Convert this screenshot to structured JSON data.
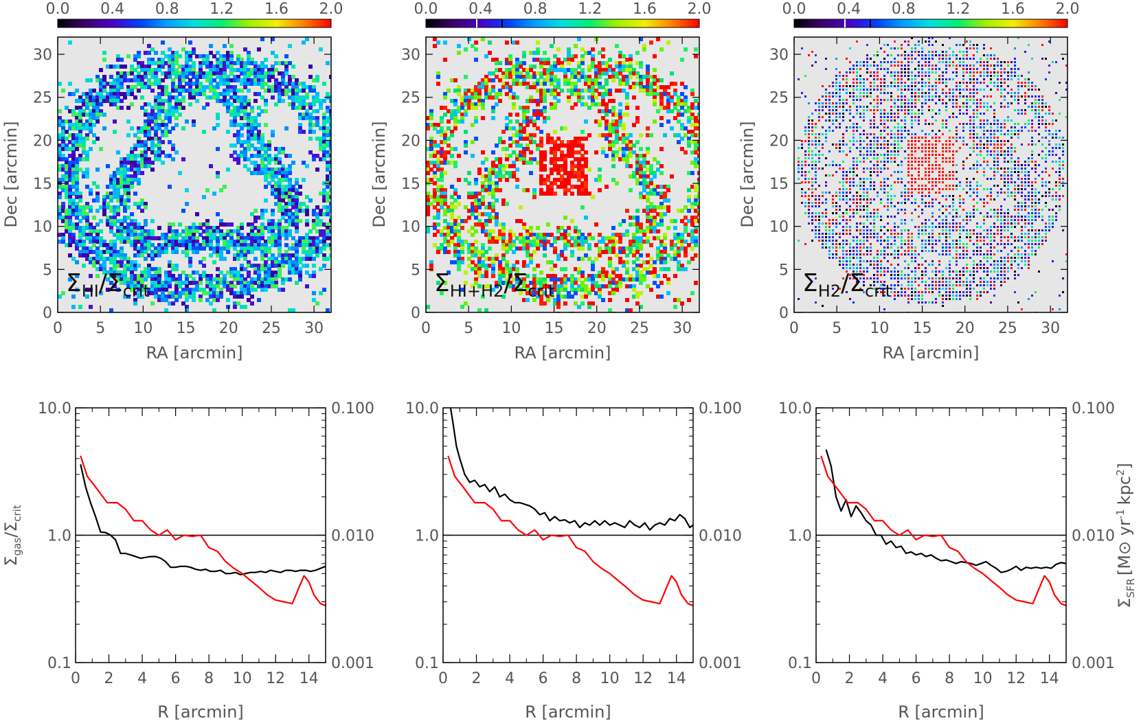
{
  "colorbar": {
    "ticks": [
      "0.0",
      "0.4",
      "0.8",
      "1.2",
      "1.6",
      "2.0"
    ],
    "stops": [
      "#000000",
      "#3a006e",
      "#4b00c8",
      "#0040ff",
      "#00a0ff",
      "#00e0e0",
      "#00f070",
      "#a0f000",
      "#f0f000",
      "#ff8000",
      "#ff0000"
    ]
  },
  "maps": {
    "xlabel": "RA [arcmin]",
    "ylabel": "Dec [arcmin]",
    "xticks": [
      "0",
      "5",
      "10",
      "15",
      "20",
      "25",
      "30"
    ],
    "yticks": [
      "0",
      "5",
      "10",
      "15",
      "20",
      "25",
      "30"
    ],
    "background": "#e6e6e6",
    "panels": [
      {
        "label_main": "Σ",
        "label_sub1": "HI",
        "label_slash": "/Σ",
        "label_sub2": "crit"
      },
      {
        "label_main": "Σ",
        "label_sub1": "HI+H2",
        "label_slash": "/Σ",
        "label_sub2": "crit"
      },
      {
        "label_main": "Σ",
        "label_sub1": "H2",
        "label_slash": "/Σ",
        "label_sub2": "crit"
      }
    ]
  },
  "profiles": {
    "xlabel": "R [arcmin]",
    "xticks": [
      "0",
      "2",
      "4",
      "6",
      "8",
      "10",
      "12",
      "14"
    ],
    "left_ticks": [
      "10.0",
      "1.0",
      "0.1"
    ],
    "right_ticks": [
      "0.100",
      "0.010",
      "0.001"
    ],
    "left_ylabel_main": "Σ",
    "left_ylabel_sub1": "gas",
    "left_ylabel_mid": "/Σ",
    "left_ylabel_sub2": "crit",
    "right_ylabel": "Σ_SFR [M⊙ yr⁻¹ kpc²]",
    "right_ylabel_main": "Σ",
    "right_ylabel_sub": "SFR",
    "right_ylabel_units": "[M⊙ yr",
    "right_ylabel_exp": "-1",
    "right_ylabel_units2": "kpc",
    "right_ylabel_exp2": "2",
    "right_ylabel_close": "]"
  },
  "chart_data": [
    {
      "type": "line",
      "xlabel": "R [arcmin]",
      "ylabel": "Σgas/Σcrit",
      "xlim": [
        0,
        15
      ],
      "ylim": [
        0.1,
        10.0
      ],
      "log_y": true,
      "reference_line_y": 1.0,
      "series": [
        {
          "color": "#000000",
          "x": [
            0.3,
            0.6,
            0.9,
            1.2,
            1.5,
            1.8,
            2.1,
            2.4,
            2.7,
            3.0,
            3.3,
            3.6,
            3.9,
            4.2,
            4.5,
            4.8,
            5.1,
            5.4,
            5.7,
            6.0,
            6.3,
            6.6,
            6.9,
            7.2,
            7.5,
            7.8,
            8.1,
            8.4,
            8.7,
            9.0,
            9.3,
            9.6,
            9.9,
            10.2,
            10.5,
            10.8,
            11.1,
            11.4,
            11.7,
            12.0,
            12.3,
            12.6,
            12.9,
            13.2,
            13.5,
            13.8,
            14.1,
            14.4,
            14.7,
            15.0
          ],
          "y": [
            3.6,
            2.4,
            1.8,
            1.4,
            1.06,
            1.05,
            1.0,
            0.92,
            0.72,
            0.72,
            0.7,
            0.68,
            0.66,
            0.67,
            0.68,
            0.68,
            0.66,
            0.62,
            0.56,
            0.56,
            0.57,
            0.57,
            0.56,
            0.54,
            0.53,
            0.54,
            0.52,
            0.52,
            0.53,
            0.5,
            0.5,
            0.51,
            0.49,
            0.5,
            0.51,
            0.51,
            0.52,
            0.51,
            0.53,
            0.52,
            0.51,
            0.53,
            0.53,
            0.52,
            0.53,
            0.53,
            0.52,
            0.53,
            0.55,
            0.57
          ]
        },
        {
          "color": "#ff0000",
          "x": [
            0.3,
            0.7,
            1.3,
            1.9,
            2.5,
            3.0,
            3.5,
            4.0,
            4.5,
            5.0,
            5.5,
            6.0,
            6.5,
            7.0,
            7.5,
            8.0,
            8.5,
            9.0,
            9.5,
            10.0,
            10.5,
            11.0,
            11.5,
            12.0,
            12.5,
            13.0,
            13.3,
            13.7,
            14.0,
            14.3,
            14.7,
            15.0
          ],
          "y": [
            4.2,
            2.9,
            2.3,
            1.8,
            1.8,
            1.6,
            1.3,
            1.3,
            1.1,
            1.0,
            1.1,
            0.92,
            1.0,
            0.98,
            1.0,
            0.8,
            0.75,
            0.62,
            0.55,
            0.5,
            0.44,
            0.39,
            0.34,
            0.31,
            0.3,
            0.29,
            0.36,
            0.48,
            0.43,
            0.34,
            0.29,
            0.28
          ]
        }
      ]
    },
    {
      "type": "line",
      "xlabel": "R [arcmin]",
      "xlim": [
        0,
        15
      ],
      "ylim": [
        0.1,
        10.0
      ],
      "log_y": true,
      "reference_line_y": 1.0,
      "series": [
        {
          "color": "#000000",
          "x": [
            0.4,
            0.6,
            0.8,
            1.0,
            1.3,
            1.6,
            1.9,
            2.2,
            2.5,
            2.8,
            3.1,
            3.4,
            3.7,
            4.0,
            4.3,
            4.6,
            4.9,
            5.2,
            5.5,
            5.8,
            6.1,
            6.4,
            6.7,
            7.0,
            7.3,
            7.6,
            7.9,
            8.2,
            8.5,
            8.8,
            9.1,
            9.4,
            9.7,
            10.0,
            10.3,
            10.6,
            10.9,
            11.2,
            11.5,
            11.8,
            12.1,
            12.4,
            12.7,
            13.0,
            13.3,
            13.6,
            13.9,
            14.2,
            14.5,
            14.8,
            15.0
          ],
          "y": [
            11.0,
            7.5,
            5.0,
            4.0,
            3.0,
            2.6,
            2.7,
            2.4,
            2.5,
            2.2,
            2.4,
            2.0,
            2.1,
            1.9,
            1.8,
            1.8,
            1.75,
            1.7,
            1.6,
            1.45,
            1.5,
            1.3,
            1.4,
            1.3,
            1.32,
            1.25,
            1.3,
            1.15,
            1.25,
            1.2,
            1.3,
            1.2,
            1.3,
            1.2,
            1.25,
            1.2,
            1.15,
            1.3,
            1.2,
            1.15,
            1.25,
            1.1,
            1.2,
            1.25,
            1.2,
            1.35,
            1.3,
            1.45,
            1.35,
            1.15,
            1.2
          ]
        },
        {
          "color": "#ff0000",
          "x": [
            0.3,
            0.7,
            1.3,
            1.9,
            2.5,
            3.0,
            3.5,
            4.0,
            4.5,
            5.0,
            5.5,
            6.0,
            6.5,
            7.0,
            7.5,
            8.0,
            8.5,
            9.0,
            9.5,
            10.0,
            10.5,
            11.0,
            11.5,
            12.0,
            12.5,
            13.0,
            13.3,
            13.7,
            14.0,
            14.3,
            14.7,
            15.0
          ],
          "y": [
            4.2,
            2.9,
            2.3,
            1.8,
            1.8,
            1.6,
            1.3,
            1.3,
            1.1,
            1.0,
            1.1,
            0.92,
            1.0,
            0.98,
            1.0,
            0.8,
            0.75,
            0.62,
            0.55,
            0.5,
            0.44,
            0.39,
            0.34,
            0.31,
            0.3,
            0.29,
            0.36,
            0.48,
            0.43,
            0.34,
            0.29,
            0.28
          ]
        }
      ]
    },
    {
      "type": "line",
      "xlabel": "R [arcmin]",
      "ylabel": "ΣSFR [M⊙ yr-1 kpc2]",
      "xlim": [
        0,
        15
      ],
      "ylim": [
        0.1,
        10.0
      ],
      "log_y": true,
      "reference_line_y": 1.0,
      "series": [
        {
          "color": "#000000",
          "x": [
            0.6,
            0.9,
            1.2,
            1.5,
            1.8,
            2.1,
            2.4,
            2.7,
            3.0,
            3.3,
            3.6,
            3.9,
            4.2,
            4.5,
            4.8,
            5.1,
            5.4,
            5.7,
            6.0,
            6.3,
            6.6,
            6.9,
            7.2,
            7.5,
            7.8,
            8.1,
            8.4,
            8.7,
            9.0,
            9.3,
            9.6,
            9.9,
            10.2,
            10.5,
            10.8,
            11.1,
            11.4,
            11.7,
            12.0,
            12.3,
            12.6,
            12.9,
            13.2,
            13.5,
            13.8,
            14.1,
            14.4,
            14.7,
            15.0
          ],
          "y": [
            4.7,
            3.5,
            2.0,
            1.55,
            1.9,
            1.4,
            1.7,
            1.5,
            1.3,
            1.2,
            1.0,
            1.0,
            0.85,
            0.9,
            0.8,
            0.82,
            0.72,
            0.74,
            0.7,
            0.72,
            0.68,
            0.7,
            0.66,
            0.63,
            0.64,
            0.62,
            0.6,
            0.62,
            0.61,
            0.6,
            0.58,
            0.6,
            0.62,
            0.58,
            0.55,
            0.51,
            0.52,
            0.54,
            0.57,
            0.53,
            0.56,
            0.55,
            0.56,
            0.55,
            0.56,
            0.55,
            0.59,
            0.61,
            0.6
          ]
        },
        {
          "color": "#ff0000",
          "x": [
            0.3,
            0.7,
            1.3,
            1.9,
            2.5,
            3.0,
            3.5,
            4.0,
            4.5,
            5.0,
            5.5,
            6.0,
            6.5,
            7.0,
            7.5,
            8.0,
            8.5,
            9.0,
            9.5,
            10.0,
            10.5,
            11.0,
            11.5,
            12.0,
            12.5,
            13.0,
            13.3,
            13.7,
            14.0,
            14.3,
            14.7,
            15.0
          ],
          "y": [
            4.2,
            2.9,
            2.3,
            1.8,
            1.8,
            1.6,
            1.3,
            1.3,
            1.1,
            1.0,
            1.1,
            0.92,
            1.0,
            0.98,
            1.0,
            0.8,
            0.75,
            0.62,
            0.55,
            0.5,
            0.44,
            0.39,
            0.34,
            0.31,
            0.3,
            0.29,
            0.36,
            0.48,
            0.43,
            0.34,
            0.29,
            0.28
          ]
        }
      ]
    }
  ]
}
